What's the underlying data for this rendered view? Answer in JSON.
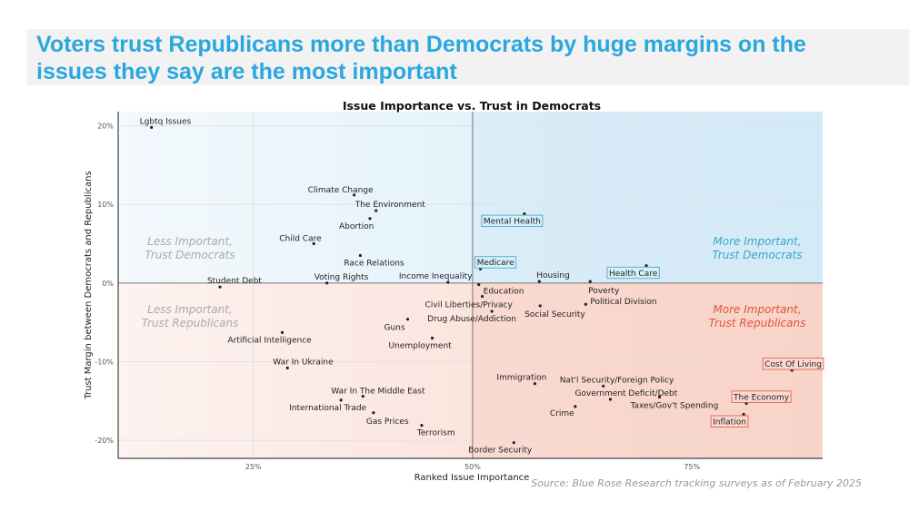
{
  "headline": "Voters trust Republicans more than Democrats by huge margins on the issues they say are the most important",
  "source": "Source: Blue Rose Research tracking surveys as of February 2025",
  "colors": {
    "headline": "#2aa7df",
    "democrat": "#3aa6c9",
    "republican": "#e0553a"
  },
  "chart_data": {
    "type": "scatter",
    "title": "Issue Importance vs. Trust in Democrats",
    "xlabel": "Ranked Issue Importance",
    "ylabel": "Trust Margin between Democrats and Republicans",
    "xlim": [
      9.6,
      89.9
    ],
    "ylim": [
      -22.3,
      21.8
    ],
    "xticks": [
      {
        "v": 25,
        "label": "25%"
      },
      {
        "v": 50,
        "label": "50%"
      },
      {
        "v": 75,
        "label": "75%"
      }
    ],
    "yticks": [
      {
        "v": 20,
        "label": "20%"
      },
      {
        "v": 10,
        "label": "10%"
      },
      {
        "v": 0,
        "label": "0%"
      },
      {
        "v": -10,
        "label": "-10%"
      },
      {
        "v": -20,
        "label": "-20%"
      }
    ],
    "grid": true,
    "quadrants": [
      {
        "label1": "Less Important,",
        "label2": "Trust Democrats",
        "color": "#aaaaaa"
      },
      {
        "label1": "More Important,",
        "label2": "Trust Democrats",
        "color": "#3aa6c9"
      },
      {
        "label1": "Less Important,",
        "label2": "Trust Republicans",
        "color": "#aaaaaa"
      },
      {
        "label1": "More Important,",
        "label2": "Trust Republicans",
        "color": "#e0553a"
      }
    ],
    "points": [
      {
        "label": "Lgbtq Issues",
        "x": 13.4,
        "y": 19.8
      },
      {
        "label": "Climate Change",
        "x": 36.5,
        "y": 11.2
      },
      {
        "label": "The Environment",
        "x": 39.0,
        "y": 9.2
      },
      {
        "label": "Abortion",
        "x": 38.3,
        "y": 8.2
      },
      {
        "label": "Child Care",
        "x": 31.9,
        "y": 5.0
      },
      {
        "label": "Race Relations",
        "x": 37.2,
        "y": 3.5
      },
      {
        "label": "Student Debt",
        "x": 21.2,
        "y": -0.5
      },
      {
        "label": "Voting Rights",
        "x": 33.4,
        "y": 0.0
      },
      {
        "label": "Income Inequality",
        "x": 47.2,
        "y": 0.1
      },
      {
        "label": "Medicare",
        "x": 50.9,
        "y": 1.8,
        "highlight": "dem"
      },
      {
        "label": "Mental Health",
        "x": 55.9,
        "y": 8.8,
        "highlight": "dem"
      },
      {
        "label": "Housing",
        "x": 57.6,
        "y": 0.2
      },
      {
        "label": "Health Care",
        "x": 69.8,
        "y": 2.2,
        "highlight": "dem"
      },
      {
        "label": "Poverty",
        "x": 63.4,
        "y": 0.2
      },
      {
        "label": "Education",
        "x": 50.7,
        "y": -0.2
      },
      {
        "label": "Civil Liberties/Privacy",
        "x": 51.1,
        "y": -1.7
      },
      {
        "label": "Drug Abuse/Addiction",
        "x": 52.2,
        "y": -3.6
      },
      {
        "label": "Social Security",
        "x": 57.7,
        "y": -2.9
      },
      {
        "label": "Political Division",
        "x": 62.9,
        "y": -2.7
      },
      {
        "label": "Guns",
        "x": 42.6,
        "y": -4.6
      },
      {
        "label": "Unemployment",
        "x": 45.4,
        "y": -7.0
      },
      {
        "label": "Artificial Intelligence",
        "x": 28.3,
        "y": -6.3
      },
      {
        "label": "War In Ukraine",
        "x": 28.9,
        "y": -10.8
      },
      {
        "label": "War In The Middle East",
        "x": 37.5,
        "y": -14.4
      },
      {
        "label": "International Trade",
        "x": 35.0,
        "y": -14.9
      },
      {
        "label": "Gas Prices",
        "x": 38.7,
        "y": -16.5
      },
      {
        "label": "Terrorism",
        "x": 44.2,
        "y": -18.1
      },
      {
        "label": "Border Security",
        "x": 54.7,
        "y": -20.3
      },
      {
        "label": "Immigration",
        "x": 57.1,
        "y": -12.8
      },
      {
        "label": "Nat'l Security/Foreign Policy",
        "x": 64.9,
        "y": -13.1
      },
      {
        "label": "Government Deficit/Debt",
        "x": 65.7,
        "y": -14.8
      },
      {
        "label": "Crime",
        "x": 61.7,
        "y": -15.7
      },
      {
        "label": "Taxes/Gov't Spending",
        "x": 71.3,
        "y": -14.5
      },
      {
        "label": "Cost Of Living",
        "x": 86.4,
        "y": -11.1,
        "highlight": "rep"
      },
      {
        "label": "The Economy",
        "x": 81.2,
        "y": -15.3,
        "highlight": "rep"
      },
      {
        "label": "Inflation",
        "x": 80.9,
        "y": -16.7,
        "highlight": "rep"
      }
    ]
  }
}
